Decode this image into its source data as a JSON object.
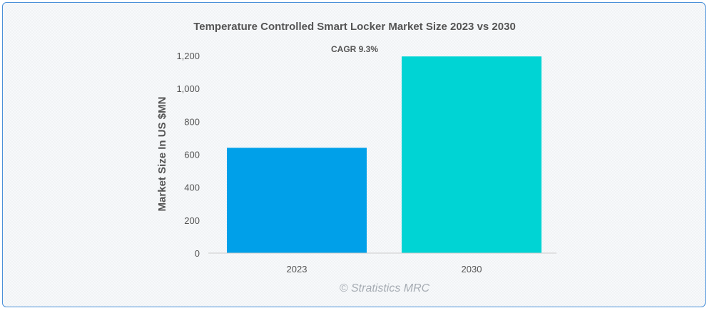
{
  "chart_data": {
    "type": "bar",
    "title": "Temperature Controlled Smart Locker Market Size 2023 vs 2030",
    "annotation": "CAGR 9.3%",
    "xlabel": "",
    "ylabel": "Market Size In US $MN",
    "categories": [
      "2023",
      "2030"
    ],
    "values": [
      640,
      1195
    ],
    "colors": [
      "#00a0e9",
      "#00d4d4"
    ],
    "ylim": [
      0,
      1200
    ],
    "yticks": [
      0,
      200,
      400,
      600,
      800,
      1000,
      1200
    ],
    "ytick_labels": [
      "0",
      "200",
      "400",
      "600",
      "800",
      "1,000",
      "1,200"
    ],
    "grid": false,
    "legend": "none"
  },
  "watermark": "© Stratistics MRC",
  "colors": {
    "border": "#4a90d9",
    "text": "#555555",
    "axis": "#cccccc"
  }
}
